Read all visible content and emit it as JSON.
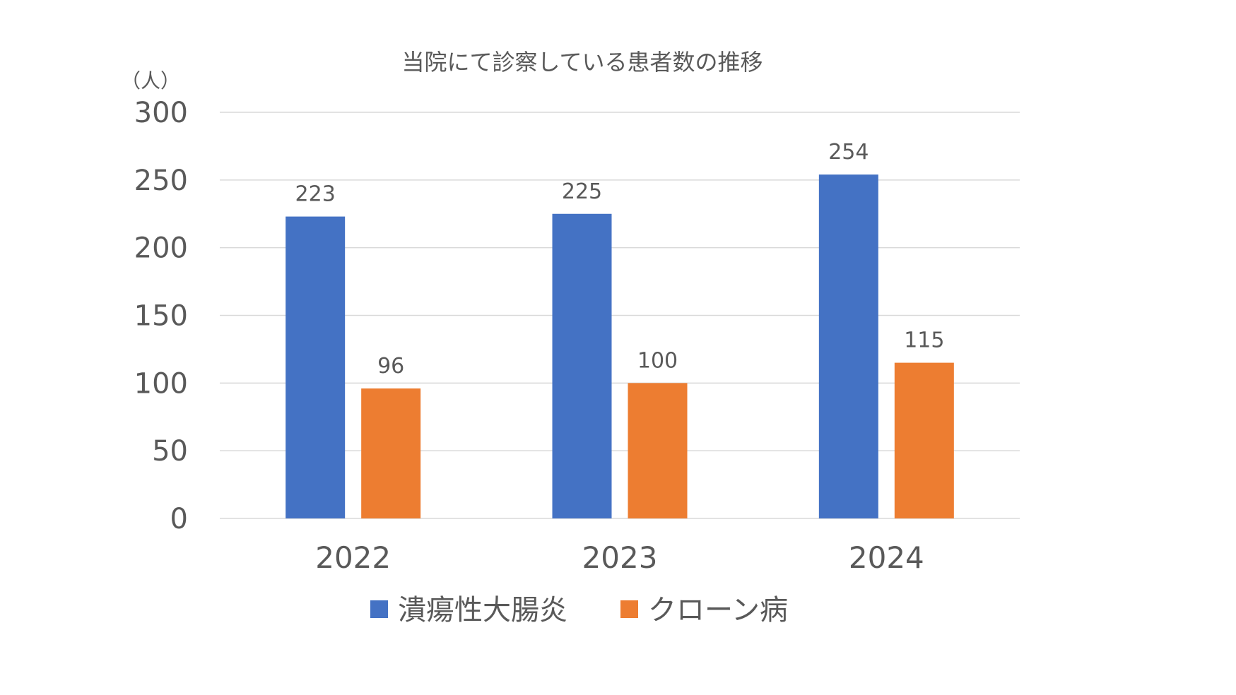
{
  "chart_data": {
    "type": "bar",
    "title": "当院にて診察している患者数の推移",
    "ylabel": "（人）",
    "xlabel": "",
    "ylim": [
      0,
      300
    ],
    "yticks": [
      0,
      50,
      100,
      150,
      200,
      250,
      300
    ],
    "categories": [
      "2022",
      "2023",
      "2024"
    ],
    "series": [
      {
        "name": "潰瘍性大腸炎",
        "values": [
          223,
          225,
          254
        ],
        "color": "#4472C4"
      },
      {
        "name": "クローン病",
        "values": [
          96,
          100,
          115
        ],
        "color": "#ED7D31"
      }
    ],
    "grid": true,
    "legend": "bottom",
    "data_labels": true
  }
}
